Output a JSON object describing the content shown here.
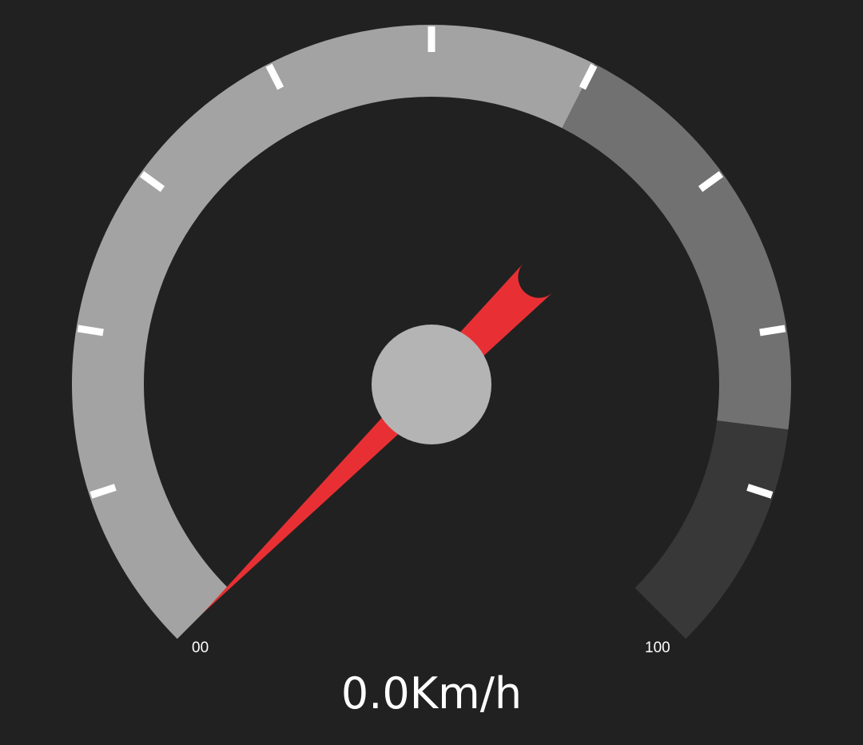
{
  "gauge": {
    "min_label": "00",
    "max_label": "100",
    "min_value": 0,
    "max_value": 100,
    "sweep_start_deg": 225,
    "sweep_end_deg": 495,
    "segments": [
      {
        "name": "low",
        "from": 0,
        "to": 60,
        "color": "#a3a3a3"
      },
      {
        "name": "mid",
        "from": 60,
        "to": 86,
        "color": "#717171"
      },
      {
        "name": "high",
        "from": 86,
        "to": 100,
        "color": "#383838"
      }
    ],
    "tick_count": 9,
    "tick_color": "#ffffff",
    "needle_color": "#e83034",
    "hub_color": "#b4b4b4",
    "background_color": "#212121"
  },
  "readout": {
    "value": "0.0",
    "unit": "Km/h",
    "text": "0.0Km/h"
  }
}
